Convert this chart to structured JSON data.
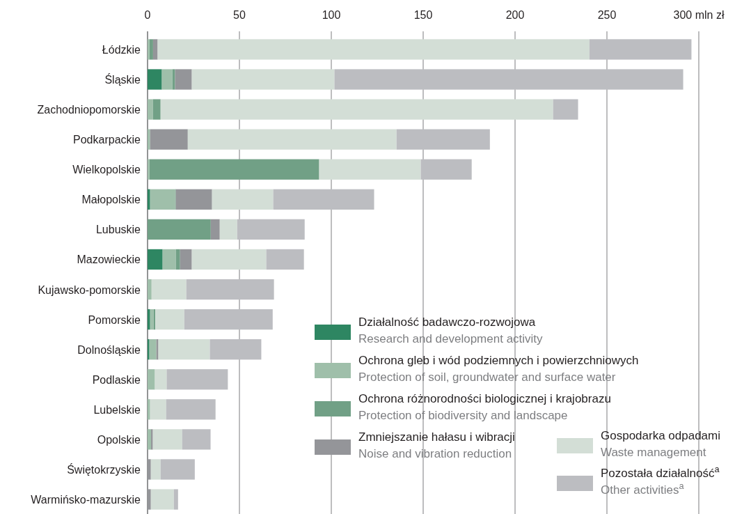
{
  "chart_data": {
    "type": "bar",
    "orientation": "horizontal",
    "stacked": true,
    "categories": [
      "Łódzkie",
      "Śląskie",
      "Zachodniopomorskie",
      "Podkarpackie",
      "Wielkopolskie",
      "Małopolskie",
      "Lubuskie",
      "Mazowieckie",
      "Kujawsko-pomorskie",
      "Pomorskie",
      "Dolnośląskie",
      "Podlaskie",
      "Lubelskie",
      "Opolskie",
      "Świętokrzyskie",
      "Warmińsko-mazurskie"
    ],
    "series": [
      {
        "name": "Działalność badawczo-rozwojowa\nResearch and development activity",
        "color": "#2e8662",
        "values": [
          0,
          7.8,
          0,
          0,
          0,
          1.4,
          0,
          8.2,
          0,
          1.4,
          1,
          0,
          0,
          0,
          0,
          0
        ]
      },
      {
        "name": "Ochrona gleb i wód podziemnych i powierzchniowych\nProtection of soil, groundwater and surface water",
        "color": "#9fbfaa",
        "values": [
          1,
          5.7,
          2.9,
          1.4,
          1,
          13.6,
          0,
          7.2,
          2.2,
          1.9,
          3.8,
          4,
          1.4,
          1.9,
          0,
          0
        ]
      },
      {
        "name": "Ochrona różnorodności biologicznej i krajobrazu\nProtection of biodiversity and landscape",
        "color": "#71a086",
        "values": [
          2,
          1.5,
          4.2,
          0,
          92.4,
          0.4,
          34.4,
          2.3,
          0,
          0.9,
          0,
          0,
          0,
          0,
          0,
          0
        ]
      },
      {
        "name": "Zmniejszanie hałasu i wibracji\nNoise and vibration reduction",
        "color": "#949599",
        "values": [
          2.5,
          9.1,
          0,
          20.5,
          0,
          19.7,
          4.9,
          6.4,
          0,
          0,
          1.1,
          0,
          0,
          1,
          1.8,
          1.8
        ]
      },
      {
        "name": "Gospodarka odpadami\nWaste management",
        "color": "#d3ded6",
        "values": [
          235,
          77.6,
          213.6,
          113.6,
          55.3,
          33.3,
          9.5,
          40.5,
          18.9,
          15.8,
          28,
          6.4,
          8.7,
          15.9,
          5.3,
          12.5
        ]
      },
      {
        "name": "Pozostała działalność$^{a}$\nOther activities$^{a}$",
        "color": "#bcbdc1",
        "values": [
          55.5,
          189.8,
          13.6,
          50.8,
          27.7,
          54.9,
          36.7,
          20.5,
          47.7,
          48.1,
          28,
          33.3,
          26.9,
          15.5,
          18.6,
          2.3
        ]
      }
    ],
    "xlim": [
      0,
      300
    ],
    "xticks": [
      0,
      50,
      100,
      150,
      200,
      250,
      {
        "value": 300,
        "label": "300 mln zł"
      }
    ],
    "grid": "x",
    "legend": "bottom right"
  }
}
